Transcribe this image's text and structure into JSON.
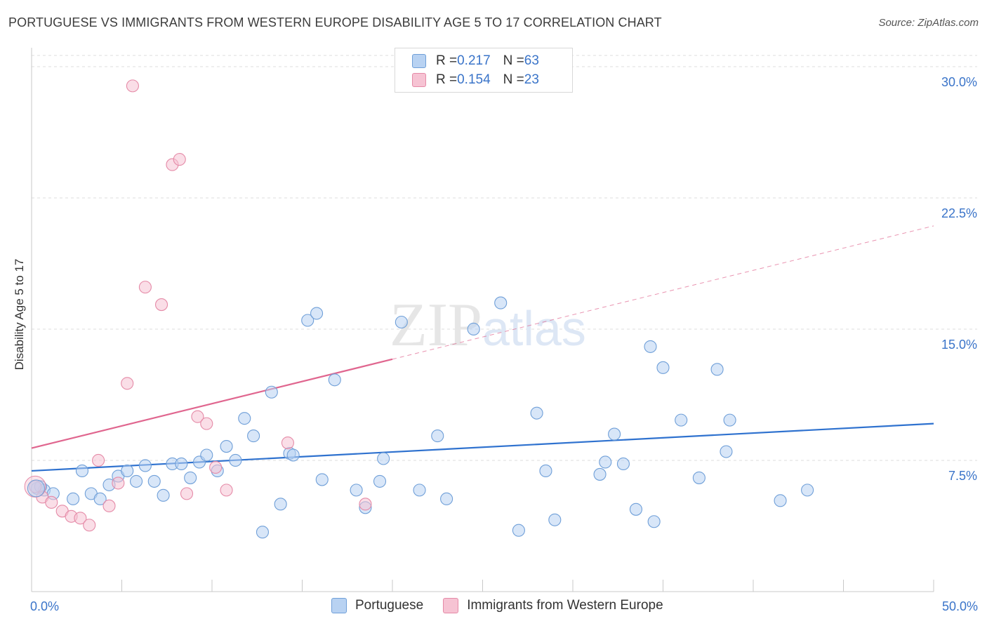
{
  "title": "PORTUGUESE VS IMMIGRANTS FROM WESTERN EUROPE DISABILITY AGE 5 TO 17 CORRELATION CHART",
  "source": "Source: ZipAtlas.com",
  "watermark": "ZIPatlas",
  "legend": {
    "series1": {
      "r_label": "R = ",
      "r_value": "0.217",
      "n_label": "N = ",
      "n_value": "63"
    },
    "series2": {
      "r_label": "R = ",
      "r_value": "0.154",
      "n_label": "N = ",
      "n_value": "23"
    }
  },
  "colors": {
    "blue_fill": "#b8d2f2",
    "blue_stroke": "#6f9fd8",
    "blue_line": "#2f72cf",
    "pink_fill": "#f6c3d3",
    "pink_stroke": "#e58aa7",
    "pink_line": "#e0668f",
    "axis_text": "#3a74c9",
    "grid": "#dcdcdc"
  },
  "chart_data": {
    "type": "scatter",
    "title": "PORTUGUESE VS IMMIGRANTS FROM WESTERN EUROPE DISABILITY AGE 5 TO 17 CORRELATION CHART",
    "xlabel": "",
    "ylabel": "Disability Age 5 to 17",
    "xlim": [
      0,
      50
    ],
    "ylim": [
      0,
      30.8
    ],
    "x_tick_labels": [
      "0.0%",
      "50.0%"
    ],
    "y_ticks": [
      7.5,
      15.0,
      22.5,
      30.0
    ],
    "y_tick_labels": [
      "7.5%",
      "15.0%",
      "22.5%",
      "30.0%"
    ],
    "grid": true,
    "legend_position": "top-center",
    "series": [
      {
        "name": "Portuguese",
        "color": "blue",
        "R": 0.217,
        "N": 63,
        "trend": {
          "x": [
            0,
            50
          ],
          "y": [
            6.9,
            9.6
          ],
          "solid_to": 50
        },
        "points": [
          [
            0.3,
            5.9
          ],
          [
            0.7,
            5.8
          ],
          [
            1.2,
            5.6
          ],
          [
            2.3,
            5.3
          ],
          [
            2.8,
            6.9
          ],
          [
            3.3,
            5.6
          ],
          [
            3.8,
            5.3
          ],
          [
            4.3,
            6.1
          ],
          [
            4.8,
            6.6
          ],
          [
            5.3,
            6.9
          ],
          [
            5.8,
            6.3
          ],
          [
            6.3,
            7.2
          ],
          [
            6.8,
            6.3
          ],
          [
            7.3,
            5.5
          ],
          [
            7.8,
            7.3
          ],
          [
            8.3,
            7.3
          ],
          [
            8.8,
            6.5
          ],
          [
            9.3,
            7.4
          ],
          [
            9.7,
            7.8
          ],
          [
            10.3,
            6.9
          ],
          [
            10.8,
            8.3
          ],
          [
            11.3,
            7.5
          ],
          [
            11.8,
            9.9
          ],
          [
            12.3,
            8.9
          ],
          [
            12.8,
            3.4
          ],
          [
            13.3,
            11.4
          ],
          [
            13.8,
            5.0
          ],
          [
            14.3,
            7.9
          ],
          [
            14.5,
            7.8
          ],
          [
            15.3,
            15.5
          ],
          [
            15.8,
            15.9
          ],
          [
            16.1,
            6.4
          ],
          [
            16.8,
            12.1
          ],
          [
            18.0,
            5.8
          ],
          [
            18.5,
            4.8
          ],
          [
            19.3,
            6.3
          ],
          [
            19.5,
            7.6
          ],
          [
            20.5,
            15.4
          ],
          [
            21.5,
            5.8
          ],
          [
            22.5,
            8.9
          ],
          [
            23.0,
            5.3
          ],
          [
            24.5,
            15.0
          ],
          [
            26.0,
            16.5
          ],
          [
            27.0,
            3.5
          ],
          [
            28.0,
            10.2
          ],
          [
            28.5,
            6.9
          ],
          [
            29.0,
            4.1
          ],
          [
            31.5,
            6.7
          ],
          [
            31.8,
            7.4
          ],
          [
            32.3,
            9.0
          ],
          [
            32.8,
            7.3
          ],
          [
            33.5,
            4.7
          ],
          [
            34.3,
            14.0
          ],
          [
            34.5,
            4.0
          ],
          [
            35.0,
            12.8
          ],
          [
            36.0,
            9.8
          ],
          [
            37.0,
            6.5
          ],
          [
            38.0,
            12.7
          ],
          [
            38.5,
            8.0
          ],
          [
            38.7,
            9.8
          ],
          [
            41.5,
            5.2
          ],
          [
            43.0,
            5.8
          ],
          [
            0.5,
            6.0
          ]
        ]
      },
      {
        "name": "Immigrants from Western Europe",
        "color": "pink",
        "R": 0.154,
        "N": 23,
        "trend": {
          "x": [
            0,
            50
          ],
          "y": [
            8.2,
            20.9
          ],
          "solid_to": 20.0
        },
        "points": [
          [
            0.2,
            6.0
          ],
          [
            0.6,
            5.4
          ],
          [
            1.1,
            5.1
          ],
          [
            1.7,
            4.6
          ],
          [
            2.2,
            4.3
          ],
          [
            2.7,
            4.2
          ],
          [
            3.2,
            3.8
          ],
          [
            3.7,
            7.5
          ],
          [
            4.3,
            4.9
          ],
          [
            4.8,
            6.2
          ],
          [
            5.3,
            11.9
          ],
          [
            5.6,
            28.9
          ],
          [
            6.3,
            17.4
          ],
          [
            7.2,
            16.4
          ],
          [
            7.8,
            24.4
          ],
          [
            8.2,
            24.7
          ],
          [
            8.6,
            5.6
          ],
          [
            9.2,
            10.0
          ],
          [
            9.7,
            9.6
          ],
          [
            10.2,
            7.1
          ],
          [
            10.8,
            5.8
          ],
          [
            14.2,
            8.5
          ],
          [
            18.5,
            5.0
          ]
        ]
      }
    ],
    "bottom_legend": [
      "Portuguese",
      "Immigrants from Western Europe"
    ]
  }
}
